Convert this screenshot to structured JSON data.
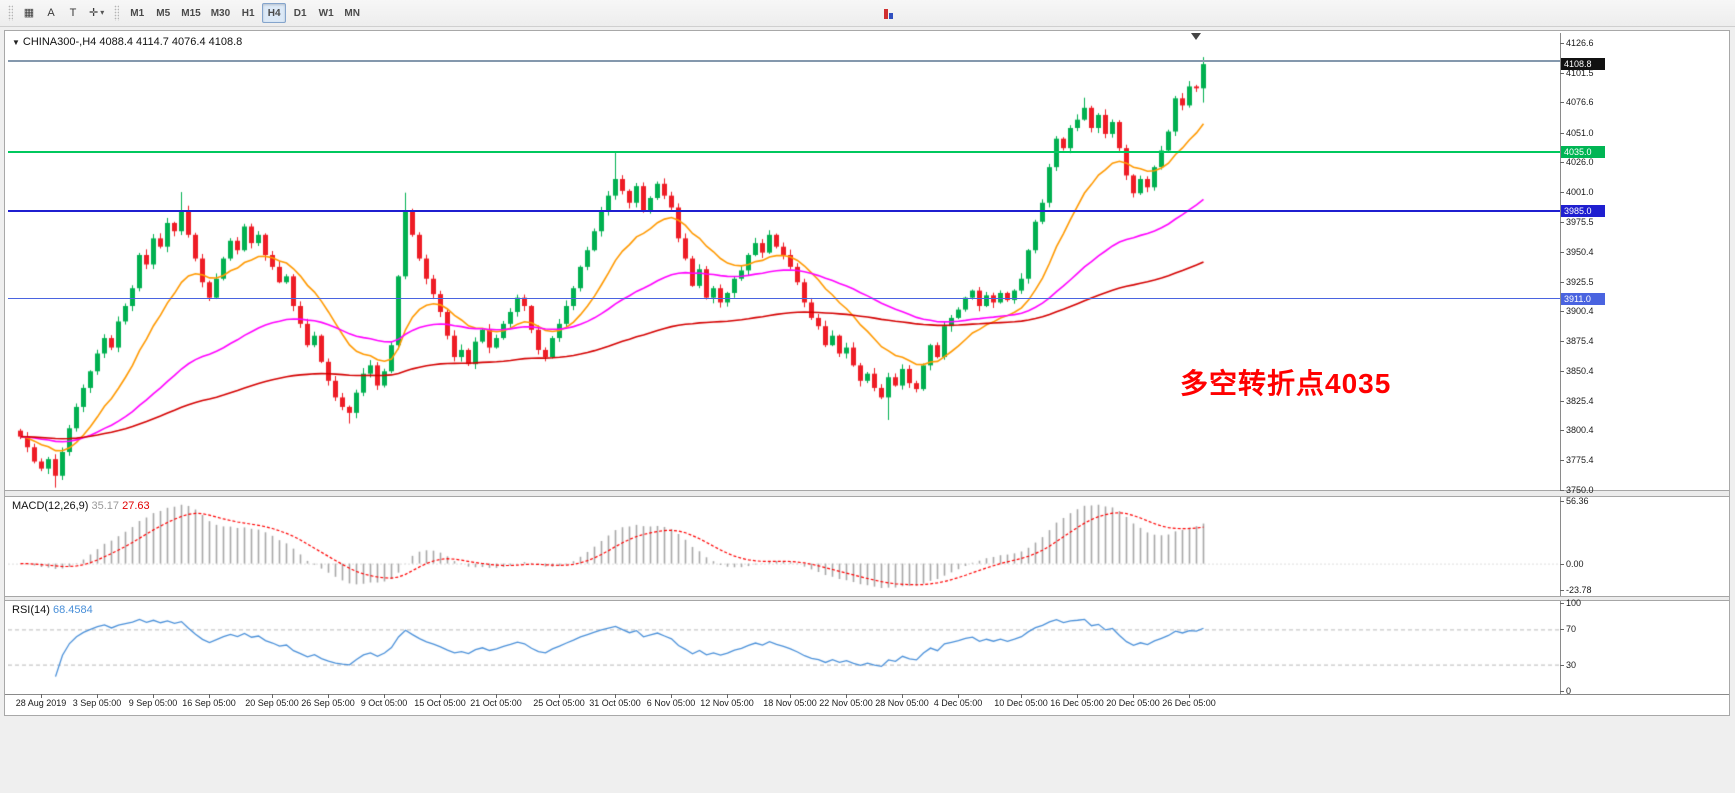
{
  "colors": {
    "candle_up": "#00b050",
    "candle_down": "#ee1c25",
    "macd_hist": "#a8a8a8",
    "macd_signal": "#ff0000",
    "rsi_line": "#4a90d9",
    "annotation": "#ff0000"
  },
  "toolbar": {
    "icons": [
      {
        "name": "chart-window-icon",
        "glyph": "▦"
      },
      {
        "name": "text-label-icon",
        "glyph": "A"
      },
      {
        "name": "text-tool-icon",
        "glyph": "T"
      },
      {
        "name": "crosshair-tool-icon",
        "glyph": "✛",
        "caret": "▾"
      }
    ],
    "timeframes": [
      "M1",
      "M5",
      "M15",
      "M30",
      "H1",
      "H4",
      "D1",
      "W1",
      "MN"
    ],
    "active_timeframe": "H4"
  },
  "chart": {
    "header": {
      "menu_arrow": "▼",
      "symbol_period": "CHINA300-,H4",
      "ohlc": "4088.4 4114.7 4076.4 4108.8"
    },
    "annotation": {
      "text": "多空转折点4035"
    },
    "price_axis": {
      "ticks": [
        "4126.6",
        "4101.5",
        "4076.6",
        "4051.0",
        "4026.0",
        "4001.0",
        "3975.5",
        "3950.4",
        "3925.5",
        "3900.4",
        "3875.4",
        "3850.4",
        "3825.4",
        "3800.4",
        "3775.4",
        "3750.0"
      ],
      "tags": [
        {
          "label": "4108.8",
          "price": 4108.8,
          "bg": "#111111"
        },
        {
          "label": "4035.0",
          "price": 4035.0,
          "bg": "#00b554"
        },
        {
          "label": "3985.0",
          "price": 3985.0,
          "bg": "#1f1fd0"
        },
        {
          "label": "3911.0",
          "price": 3911.0,
          "bg": "#4a64e0"
        }
      ]
    },
    "hlines": [
      {
        "id": "hline-top-gray",
        "price": 4111.5,
        "color": "#8498ad",
        "width": 2,
        "style": "solid"
      },
      {
        "id": "hline-4035",
        "price": 4035.0,
        "color": "#00c85e",
        "width": 2,
        "style": "solid"
      },
      {
        "id": "hline-3985",
        "price": 3985.0,
        "color": "#1f1fd0",
        "width": 2,
        "style": "solid"
      },
      {
        "id": "hline-3911",
        "price": 3911.0,
        "color": "#4a64e0",
        "width": 1,
        "style": "solid"
      }
    ]
  },
  "macd": {
    "label": "MACD(12,26,9)",
    "value_main": "35.17",
    "value_signal": "27.63",
    "axis": [
      "56.36",
      "0.00",
      "-23.78"
    ],
    "range": [
      -23.78,
      56.36
    ],
    "params": {
      "fast": 12,
      "slow": 26,
      "signal": 9
    }
  },
  "rsi": {
    "label": "RSI(14)",
    "value": "68.4584",
    "axis": [
      "100",
      "70",
      "30",
      "0"
    ],
    "levels": [
      70,
      30
    ],
    "period": 14
  },
  "chart_data": {
    "type": "candlestick",
    "title": "CHINA300-,H4",
    "symbol": "CHINA300-",
    "period": "H4",
    "ylim": [
      3750.0,
      4126.6
    ],
    "open_first": 3800,
    "closes": [
      3795,
      3786,
      3774,
      3768,
      3776,
      3762,
      3782,
      3802,
      3820,
      3836,
      3850,
      3865,
      3878,
      3870,
      3892,
      3905,
      3920,
      3948,
      3940,
      3962,
      3955,
      3975,
      3968,
      3985,
      3965,
      3945,
      3925,
      3912,
      3928,
      3945,
      3960,
      3952,
      3972,
      3958,
      3965,
      3948,
      3938,
      3925,
      3930,
      3905,
      3890,
      3872,
      3880,
      3858,
      3842,
      3828,
      3820,
      3815,
      3832,
      3848,
      3855,
      3838,
      3850,
      3872,
      3930,
      3985,
      3965,
      3945,
      3928,
      3915,
      3900,
      3880,
      3862,
      3868,
      3856,
      3875,
      3885,
      3870,
      3878,
      3890,
      3900,
      3912,
      3905,
      3885,
      3868,
      3862,
      3878,
      3890,
      3905,
      3920,
      3938,
      3952,
      3968,
      3985,
      3998,
      4012,
      4002,
      3992,
      4006,
      3985,
      3996,
      4008,
      3998,
      3988,
      3962,
      3945,
      3922,
      3936,
      3912,
      3920,
      3908,
      3916,
      3928,
      3935,
      3948,
      3958,
      3950,
      3965,
      3955,
      3948,
      3938,
      3925,
      3908,
      3895,
      3888,
      3872,
      3880,
      3865,
      3870,
      3855,
      3842,
      3848,
      3836,
      3828,
      3845,
      3838,
      3852,
      3840,
      3835,
      3855,
      3872,
      3862,
      3888,
      3895,
      3902,
      3912,
      3918,
      3905,
      3914,
      3908,
      3916,
      3910,
      3918,
      3928,
      3952,
      3976,
      3992,
      4022,
      4046,
      4038,
      4055,
      4062,
      4072,
      4055,
      4066,
      4050,
      4060,
      4038,
      4015,
      4000,
      4012,
      4005,
      4022,
      4036,
      4052,
      4080,
      4074,
      4090,
      4088.4,
      4108.8
    ],
    "high_overrides": {
      "23": 4001.0,
      "55": 4000.5,
      "85": 4034.5,
      "152": 4080.5,
      "165": 4082.0,
      "169": 4114.7
    },
    "low_overrides": {
      "5": 3752.0,
      "47": 3806.0,
      "124": 3809.0,
      "169": 4076.4
    },
    "last_candle": {
      "open": 4088.4,
      "high": 4114.7,
      "low": 4076.4,
      "close": 4108.8
    },
    "moving_averages": [
      {
        "name": "ma-fast",
        "period": 14,
        "color": "#ff9900"
      },
      {
        "name": "ma-medium",
        "period": 50,
        "color": "#ff00ff"
      },
      {
        "name": "ma-slow",
        "period": 130,
        "color": "#d40000"
      }
    ],
    "time_labels": [
      {
        "text": "28 Aug 2019",
        "i": 3
      },
      {
        "text": "3 Sep 05:00",
        "i": 11
      },
      {
        "text": "9 Sep 05:00",
        "i": 19
      },
      {
        "text": "16 Sep 05:00",
        "i": 27
      },
      {
        "text": "20 Sep 05:00",
        "i": 36
      },
      {
        "text": "26 Sep 05:00",
        "i": 44
      },
      {
        "text": "9 Oct 05:00",
        "i": 52
      },
      {
        "text": "15 Oct 05:00",
        "i": 60
      },
      {
        "text": "21 Oct 05:00",
        "i": 68
      },
      {
        "text": "25 Oct 05:00",
        "i": 77
      },
      {
        "text": "31 Oct 05:00",
        "i": 85
      },
      {
        "text": "6 Nov 05:00",
        "i": 93
      },
      {
        "text": "12 Nov 05:00",
        "i": 101
      },
      {
        "text": "18 Nov 05:00",
        "i": 110
      },
      {
        "text": "22 Nov 05:00",
        "i": 118
      },
      {
        "text": "28 Nov 05:00",
        "i": 126
      },
      {
        "text": "4 Dec 05:00",
        "i": 134
      },
      {
        "text": "10 Dec 05:00",
        "i": 143
      },
      {
        "text": "16 Dec 05:00",
        "i": 151
      },
      {
        "text": "20 Dec 05:00",
        "i": 159
      },
      {
        "text": "26 Dec 05:00",
        "i": 167
      }
    ]
  }
}
